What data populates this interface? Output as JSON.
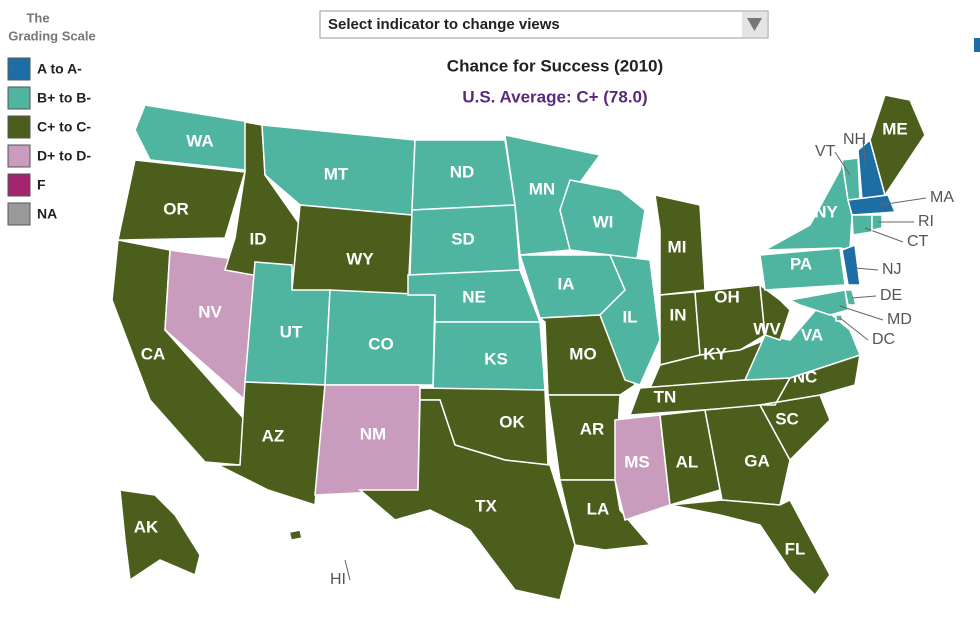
{
  "legend": {
    "title_lines": [
      "The",
      "Grading Scale"
    ],
    "items": [
      {
        "label": "A to A-",
        "color": "#1d6ea5"
      },
      {
        "label": "B+ to B-",
        "color": "#4fb5a0"
      },
      {
        "label": "C+  to  C-",
        "color": "#4b5e1b"
      },
      {
        "label": "D+ to D-",
        "color": "#c99bbd"
      },
      {
        "label": "F",
        "color": "#a3246f"
      },
      {
        "label": "NA",
        "color": "#9a9a9a"
      }
    ]
  },
  "dropdown": {
    "label": "Select indicator to change views"
  },
  "title": "Chance for Success (2010)",
  "subtitle": "U.S. Average: C+ (78.0)",
  "states": [
    {
      "label": "WA",
      "color": "#4fb5a0"
    },
    {
      "label": "OR",
      "color": "#4b5e1b"
    },
    {
      "label": "CA",
      "color": "#4b5e1b"
    },
    {
      "label": "NV",
      "color": "#c99bbd"
    },
    {
      "label": "ID",
      "color": "#4b5e1b"
    },
    {
      "label": "MT",
      "color": "#4fb5a0"
    },
    {
      "label": "WY",
      "color": "#4b5e1b"
    },
    {
      "label": "UT",
      "color": "#4fb5a0"
    },
    {
      "label": "CO",
      "color": "#4fb5a0"
    },
    {
      "label": "AZ",
      "color": "#4b5e1b"
    },
    {
      "label": "NM",
      "color": "#c99bbd"
    },
    {
      "label": "ND",
      "color": "#4fb5a0"
    },
    {
      "label": "SD",
      "color": "#4fb5a0"
    },
    {
      "label": "NE",
      "color": "#4fb5a0"
    },
    {
      "label": "KS",
      "color": "#4fb5a0"
    },
    {
      "label": "OK",
      "color": "#4b5e1b"
    },
    {
      "label": "TX",
      "color": "#4b5e1b"
    },
    {
      "label": "MN",
      "color": "#4fb5a0"
    },
    {
      "label": "IA",
      "color": "#4fb5a0"
    },
    {
      "label": "MO",
      "color": "#4b5e1b"
    },
    {
      "label": "AR",
      "color": "#4b5e1b"
    },
    {
      "label": "LA",
      "color": "#4b5e1b"
    },
    {
      "label": "WI",
      "color": "#4fb5a0"
    },
    {
      "label": "IL",
      "color": "#4fb5a0"
    },
    {
      "label": "MI",
      "color": "#4b5e1b"
    },
    {
      "label": "IN",
      "color": "#4b5e1b"
    },
    {
      "label": "OH",
      "color": "#4b5e1b"
    },
    {
      "label": "KY",
      "color": "#4b5e1b"
    },
    {
      "label": "TN",
      "color": "#4b5e1b"
    },
    {
      "label": "MS",
      "color": "#c99bbd"
    },
    {
      "label": "AL",
      "color": "#4b5e1b"
    },
    {
      "label": "GA",
      "color": "#4b5e1b"
    },
    {
      "label": "FL",
      "color": "#4b5e1b"
    },
    {
      "label": "SC",
      "color": "#4b5e1b"
    },
    {
      "label": "NC",
      "color": "#4b5e1b"
    },
    {
      "label": "VA",
      "color": "#4fb5a0"
    },
    {
      "label": "WV",
      "color": "#4b5e1b"
    },
    {
      "label": "PA",
      "color": "#4fb5a0"
    },
    {
      "label": "NY",
      "color": "#4fb5a0"
    },
    {
      "label": "VT",
      "color": "#4fb5a0"
    },
    {
      "label": "NH",
      "color": "#1d6ea5"
    },
    {
      "label": "ME",
      "color": "#4b5e1b"
    },
    {
      "label": "MA",
      "color": "#1d6ea5"
    },
    {
      "label": "CT",
      "color": "#4fb5a0"
    },
    {
      "label": "RI",
      "color": "#4fb5a0"
    },
    {
      "label": "NJ",
      "color": "#1d6ea5"
    },
    {
      "label": "DE",
      "color": "#4fb5a0"
    },
    {
      "label": "MD",
      "color": "#4fb5a0"
    },
    {
      "label": "DC",
      "color": "#4fb5a0"
    },
    {
      "label": "AK",
      "color": "#4b5e1b"
    },
    {
      "label": "HI",
      "color": "#4b5e1b"
    }
  ]
}
